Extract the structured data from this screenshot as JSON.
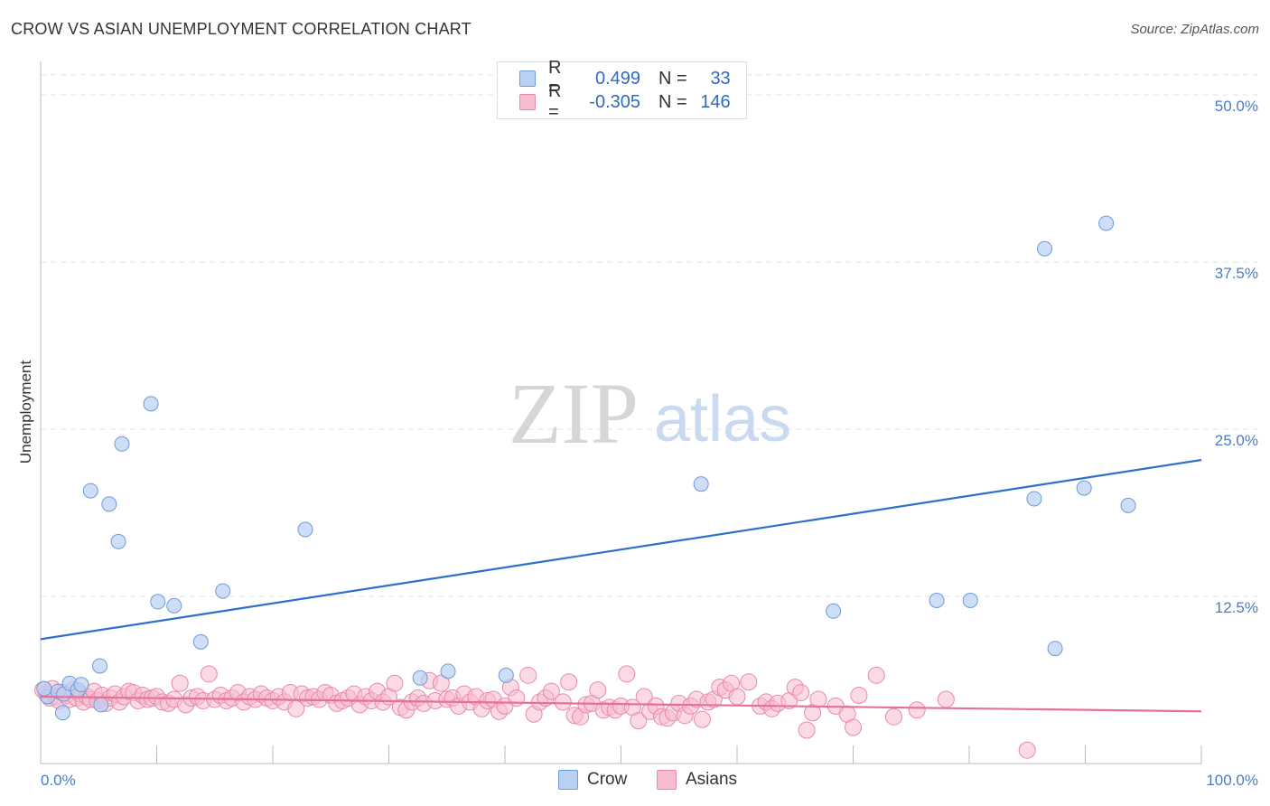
{
  "title": "CROW VS ASIAN UNEMPLOYMENT CORRELATION CHART",
  "source": "Source: ZipAtlas.com",
  "watermark": {
    "zip": "ZIP",
    "atlas": "atlas"
  },
  "legend": {
    "rows": [
      {
        "r_label": "R =",
        "r_value": "0.499",
        "n_label": "N =",
        "n_value": "33"
      },
      {
        "r_label": "R =",
        "r_value": "-0.305",
        "n_label": "N =",
        "n_value": "146"
      }
    ]
  },
  "bottom_legend": [
    "Crow",
    "Asians"
  ],
  "colors": {
    "crow_fill": "#b9d0f2",
    "crow_stroke": "#6f9ad8",
    "crow_line": "#2f6fc9",
    "asian_fill": "#f7bcd0",
    "asian_stroke": "#e889a8",
    "asian_line": "#e5709a",
    "tick": "#4a7cc2",
    "grid": "#e3e3e3"
  },
  "chart_data": {
    "type": "scatter",
    "title": "CROW VS ASIAN UNEMPLOYMENT CORRELATION CHART",
    "xlabel": "",
    "ylabel": "Unemployment",
    "xlim": [
      0,
      100
    ],
    "ylim": [
      0,
      52.5
    ],
    "x_ticks": [
      "0.0%",
      "100.0%"
    ],
    "y_ticks": [
      {
        "value": 12.5,
        "label": "12.5%"
      },
      {
        "value": 25.0,
        "label": "25.0%"
      },
      {
        "value": 37.5,
        "label": "37.5%"
      },
      {
        "value": 50.0,
        "label": "50.0%"
      }
    ],
    "series": [
      {
        "name": "Crow",
        "r": 0.499,
        "n": 33,
        "trend": [
          [
            0,
            9.3
          ],
          [
            100,
            22.7
          ]
        ],
        "points": [
          [
            0.6,
            5.0
          ],
          [
            1.5,
            5.4
          ],
          [
            2.0,
            5.2
          ],
          [
            2.5,
            6.0
          ],
          [
            3.2,
            5.5
          ],
          [
            3.5,
            5.9
          ],
          [
            4.3,
            20.4
          ],
          [
            5.2,
            4.4
          ],
          [
            5.1,
            7.3
          ],
          [
            5.9,
            19.4
          ],
          [
            6.7,
            16.6
          ],
          [
            7.0,
            23.9
          ],
          [
            9.5,
            26.9
          ],
          [
            10.1,
            12.1
          ],
          [
            11.5,
            11.8
          ],
          [
            13.8,
            9.1
          ],
          [
            15.7,
            12.9
          ],
          [
            1.9,
            3.8
          ],
          [
            22.8,
            17.5
          ],
          [
            32.7,
            6.4
          ],
          [
            35.1,
            6.9
          ],
          [
            40.1,
            6.6
          ],
          [
            56.9,
            20.9
          ],
          [
            68.3,
            11.4
          ],
          [
            77.2,
            12.2
          ],
          [
            80.1,
            12.2
          ],
          [
            85.6,
            19.8
          ],
          [
            86.5,
            38.5
          ],
          [
            87.4,
            8.6
          ],
          [
            89.9,
            20.6
          ],
          [
            91.8,
            40.4
          ],
          [
            93.7,
            19.3
          ],
          [
            0.3,
            5.6
          ]
        ]
      },
      {
        "name": "Asians",
        "r": -0.305,
        "n": 146,
        "trend": [
          [
            0,
            5.0
          ],
          [
            100,
            3.9
          ]
        ],
        "points": [
          [
            0.2,
            5.5
          ],
          [
            0.5,
            5.2
          ],
          [
            0.8,
            4.9
          ],
          [
            1.0,
            5.6
          ],
          [
            1.3,
            5.0
          ],
          [
            1.6,
            4.7
          ],
          [
            1.9,
            5.3
          ],
          [
            2.2,
            5.1
          ],
          [
            2.5,
            4.8
          ],
          [
            2.8,
            5.5
          ],
          [
            3.1,
            4.9
          ],
          [
            3.4,
            5.2
          ],
          [
            3.7,
            4.6
          ],
          [
            4.0,
            5.0
          ],
          [
            4.3,
            4.8
          ],
          [
            4.6,
            5.4
          ],
          [
            4.9,
            4.7
          ],
          [
            5.3,
            5.1
          ],
          [
            5.6,
            4.5
          ],
          [
            6.0,
            4.9
          ],
          [
            6.4,
            5.2
          ],
          [
            6.8,
            4.6
          ],
          [
            7.2,
            5.0
          ],
          [
            7.6,
            5.4
          ],
          [
            8.0,
            5.3
          ],
          [
            8.4,
            4.7
          ],
          [
            8.8,
            5.1
          ],
          [
            9.2,
            4.8
          ],
          [
            9.6,
            4.9
          ],
          [
            10.0,
            5.0
          ],
          [
            10.5,
            4.6
          ],
          [
            11.0,
            4.5
          ],
          [
            11.5,
            4.8
          ],
          [
            12.0,
            6.0
          ],
          [
            12.5,
            4.4
          ],
          [
            13.0,
            4.9
          ],
          [
            13.5,
            5.0
          ],
          [
            14.0,
            4.7
          ],
          [
            14.5,
            6.7
          ],
          [
            15.0,
            4.8
          ],
          [
            15.5,
            5.1
          ],
          [
            16.0,
            4.7
          ],
          [
            16.5,
            4.9
          ],
          [
            17.0,
            5.3
          ],
          [
            17.5,
            4.6
          ],
          [
            18.0,
            5.0
          ],
          [
            18.5,
            4.8
          ],
          [
            19.0,
            5.2
          ],
          [
            19.5,
            4.9
          ],
          [
            20.0,
            4.7
          ],
          [
            20.5,
            5.0
          ],
          [
            21.0,
            4.6
          ],
          [
            21.5,
            5.3
          ],
          [
            22.0,
            4.1
          ],
          [
            22.5,
            5.2
          ],
          [
            23.0,
            4.9
          ],
          [
            23.5,
            5.0
          ],
          [
            24.0,
            4.8
          ],
          [
            24.5,
            5.3
          ],
          [
            25.0,
            5.1
          ],
          [
            25.5,
            4.5
          ],
          [
            26.0,
            4.7
          ],
          [
            26.5,
            4.9
          ],
          [
            27.0,
            5.2
          ],
          [
            27.5,
            4.4
          ],
          [
            28.0,
            5.0
          ],
          [
            28.5,
            4.7
          ],
          [
            29.0,
            5.4
          ],
          [
            29.5,
            4.6
          ],
          [
            30.0,
            5.0
          ],
          [
            30.5,
            6.0
          ],
          [
            31.0,
            4.2
          ],
          [
            31.5,
            4.0
          ],
          [
            32.0,
            4.6
          ],
          [
            32.5,
            4.9
          ],
          [
            33.0,
            4.5
          ],
          [
            33.5,
            6.2
          ],
          [
            34.0,
            4.7
          ],
          [
            34.5,
            6.0
          ],
          [
            35.0,
            4.8
          ],
          [
            35.5,
            4.9
          ],
          [
            36.0,
            4.3
          ],
          [
            36.5,
            5.2
          ],
          [
            37.0,
            4.6
          ],
          [
            37.5,
            5.0
          ],
          [
            38.0,
            4.1
          ],
          [
            38.5,
            4.7
          ],
          [
            39.0,
            4.8
          ],
          [
            39.5,
            3.9
          ],
          [
            40.0,
            4.3
          ],
          [
            40.5,
            5.7
          ],
          [
            41.0,
            4.9
          ],
          [
            42.0,
            6.6
          ],
          [
            42.5,
            3.7
          ],
          [
            43.0,
            4.6
          ],
          [
            43.5,
            4.9
          ],
          [
            44.0,
            5.4
          ],
          [
            45.0,
            4.6
          ],
          [
            45.5,
            6.1
          ],
          [
            46.0,
            3.6
          ],
          [
            46.5,
            3.5
          ],
          [
            47.0,
            4.4
          ],
          [
            47.5,
            4.5
          ],
          [
            48.0,
            5.5
          ],
          [
            48.5,
            4.0
          ],
          [
            49.0,
            4.2
          ],
          [
            49.5,
            4.0
          ],
          [
            50.0,
            4.3
          ],
          [
            50.5,
            6.7
          ],
          [
            51.0,
            4.2
          ],
          [
            51.5,
            3.2
          ],
          [
            52.0,
            5.0
          ],
          [
            52.5,
            3.9
          ],
          [
            53.0,
            4.3
          ],
          [
            53.5,
            3.5
          ],
          [
            54.0,
            3.4
          ],
          [
            54.5,
            3.8
          ],
          [
            55.0,
            4.5
          ],
          [
            55.5,
            3.6
          ],
          [
            56.0,
            4.3
          ],
          [
            56.5,
            4.8
          ],
          [
            57.0,
            3.3
          ],
          [
            57.5,
            4.6
          ],
          [
            58.0,
            4.8
          ],
          [
            58.5,
            5.7
          ],
          [
            59.0,
            5.5
          ],
          [
            59.5,
            6.0
          ],
          [
            60.0,
            5.0
          ],
          [
            61.0,
            6.1
          ],
          [
            62.0,
            4.3
          ],
          [
            62.5,
            4.6
          ],
          [
            63.0,
            4.1
          ],
          [
            63.5,
            4.5
          ],
          [
            64.5,
            4.7
          ],
          [
            65.0,
            5.7
          ],
          [
            65.5,
            5.3
          ],
          [
            66.0,
            2.5
          ],
          [
            66.5,
            3.8
          ],
          [
            67.0,
            4.8
          ],
          [
            68.5,
            4.3
          ],
          [
            69.5,
            3.7
          ],
          [
            70.0,
            2.7
          ],
          [
            70.5,
            5.1
          ],
          [
            72.0,
            6.6
          ],
          [
            73.5,
            3.5
          ],
          [
            75.5,
            4.0
          ],
          [
            78.0,
            4.8
          ],
          [
            85.0,
            1.0
          ]
        ]
      }
    ]
  },
  "y_axis_label": "Unemployment"
}
